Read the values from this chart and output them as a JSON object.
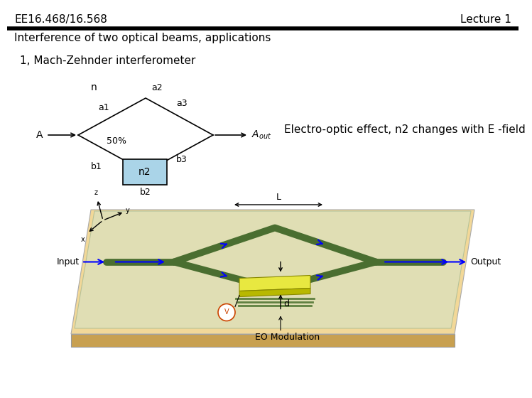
{
  "header_left": "EE16.468/16.568",
  "header_right": "Lecture 1",
  "section_title": "Interference of two optical beams, applications",
  "subsection_title": "1, Mach-Zehnder interferometer",
  "electro_optic_text": "Electro-optic effect, n2 changes with E -field",
  "bg_color": "#ffffff",
  "header_line_color": "#000000",
  "font_size_header": 11,
  "font_size_body": 11,
  "font_size_diagram": 10,
  "font_size_small": 9,
  "chip_colors": {
    "platform_top": "#f0d898",
    "platform_side_bottom": "#d4a855",
    "platform_side_right": "#e0bc70",
    "waveguide": "#4a6e30",
    "waveguide_arrow": "#0000ff",
    "modulator_top": "#e8e840",
    "modulator_side": "#c8c820",
    "glass_top": "#c8dcc8",
    "glass_edge": "#88aa88"
  }
}
